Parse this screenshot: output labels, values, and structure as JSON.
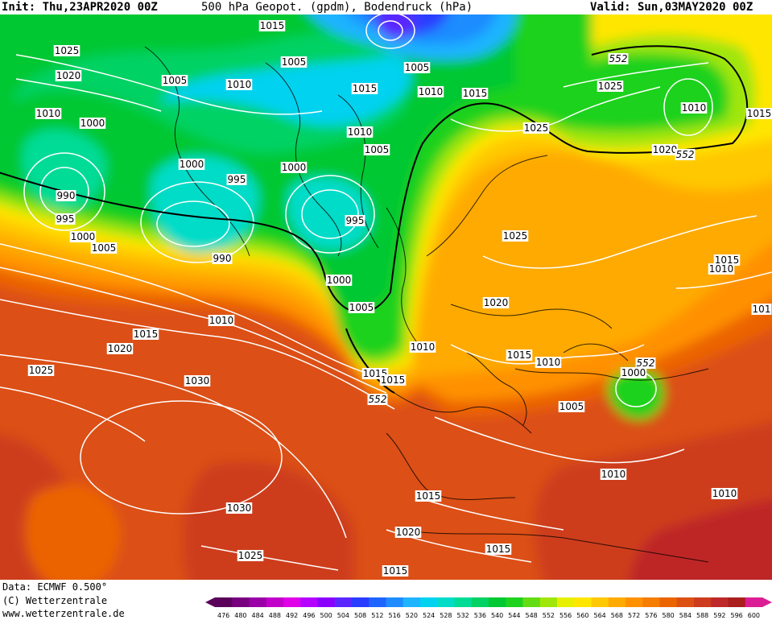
{
  "header": {
    "init": "Init: Thu,23APR2020 00Z",
    "title": "500 hPa Geopot. (gpdm), Bodendruck (hPa)",
    "valid": "Valid: Sun,03MAY2020 00Z"
  },
  "footer": {
    "data_line": "Data: ECMWF  0.500°",
    "copyright": "(C) Wetterzentrale",
    "website": "www.wetterzentrale.de"
  },
  "colorbar": {
    "labels": [
      "476",
      "480",
      "484",
      "488",
      "492",
      "496",
      "500",
      "504",
      "508",
      "512",
      "516",
      "520",
      "524",
      "528",
      "532",
      "536",
      "540",
      "544",
      "548",
      "552",
      "556",
      "560",
      "564",
      "568",
      "572",
      "576",
      "580",
      "584",
      "588",
      "592",
      "596",
      "600"
    ],
    "colors": [
      "#5a005a",
      "#78007f",
      "#9a00a8",
      "#c200c9",
      "#e000e8",
      "#b400ff",
      "#8a00ff",
      "#5a28ff",
      "#2a3cff",
      "#1e64ff",
      "#1e8cff",
      "#1eb4ff",
      "#00d2f0",
      "#00dcc8",
      "#00dc96",
      "#00d264",
      "#00c832",
      "#1ed21e",
      "#64dc14",
      "#a0e60a",
      "#e6f000",
      "#ffe600",
      "#ffc800",
      "#ffaa00",
      "#ff9100",
      "#f57d00",
      "#eb6400",
      "#dc5014",
      "#cd3c1e",
      "#be2828",
      "#aa1e1e",
      "#dc1e96"
    ]
  },
  "map": {
    "contour_line_color": "#ffffff",
    "isoline_552_color": "#000000",
    "contour_labels": [
      {
        "text": "1015"
      },
      {
        "text": "1025"
      },
      {
        "text": "1020"
      },
      {
        "text": "1005"
      },
      {
        "text": "1010"
      },
      {
        "text": "1005"
      },
      {
        "text": "1015"
      },
      {
        "text": "1005"
      },
      {
        "text": "1010"
      },
      {
        "text": "1015"
      },
      {
        "text": "552"
      },
      {
        "text": "1025"
      },
      {
        "text": "1010"
      },
      {
        "text": "1015"
      },
      {
        "text": "1010"
      },
      {
        "text": "1000"
      },
      {
        "text": "1025"
      },
      {
        "text": "1010"
      },
      {
        "text": "1005"
      },
      {
        "text": "1020"
      },
      {
        "text": "552"
      },
      {
        "text": "1000"
      },
      {
        "text": "995"
      },
      {
        "text": "1000"
      },
      {
        "text": "990"
      },
      {
        "text": "995"
      },
      {
        "text": "995"
      },
      {
        "text": "1000"
      },
      {
        "text": "1005"
      },
      {
        "text": "990"
      },
      {
        "text": "1025"
      },
      {
        "text": "1000"
      },
      {
        "text": "1005"
      },
      {
        "text": "1015"
      },
      {
        "text": "1010"
      },
      {
        "text": "1010"
      },
      {
        "text": "1015"
      },
      {
        "text": "1020"
      },
      {
        "text": "1020"
      },
      {
        "text": "1025"
      },
      {
        "text": "1010"
      },
      {
        "text": "1015"
      },
      {
        "text": "1010"
      },
      {
        "text": "1000"
      },
      {
        "text": "552"
      },
      {
        "text": "1015"
      },
      {
        "text": "1030"
      },
      {
        "text": "552"
      },
      {
        "text": "1005"
      },
      {
        "text": "1010"
      },
      {
        "text": "1015"
      },
      {
        "text": "1030"
      },
      {
        "text": "1020"
      },
      {
        "text": "1015"
      },
      {
        "text": "1010"
      },
      {
        "text": "1025"
      },
      {
        "text": "1015"
      },
      {
        "text": "1015"
      },
      {
        "text": "101"
      }
    ]
  }
}
